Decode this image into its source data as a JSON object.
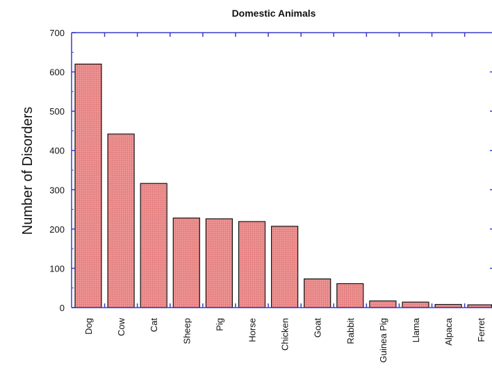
{
  "chart_data": {
    "type": "bar",
    "title": "Domestic Animals",
    "xlabel": "",
    "ylabel": "Number of Disorders",
    "ylim": [
      0,
      700
    ],
    "yticks": [
      0,
      100,
      200,
      300,
      400,
      500,
      600,
      700
    ],
    "categories": [
      "Dog",
      "Cow",
      "Cat",
      "Sheep",
      "Pig",
      "Horse",
      "Chicken",
      "Goat",
      "Rabbit",
      "Guinea Pig",
      "Llama",
      "Alpaca",
      "Ferret"
    ],
    "values": [
      620,
      442,
      316,
      228,
      226,
      219,
      207,
      73,
      61,
      17,
      14,
      8,
      7
    ],
    "grid": false,
    "legend": "none",
    "colors": {
      "bar_fill": "#e88080",
      "bar_stroke": "#111111",
      "axis": "#3a3acc",
      "text": "#111111"
    }
  }
}
